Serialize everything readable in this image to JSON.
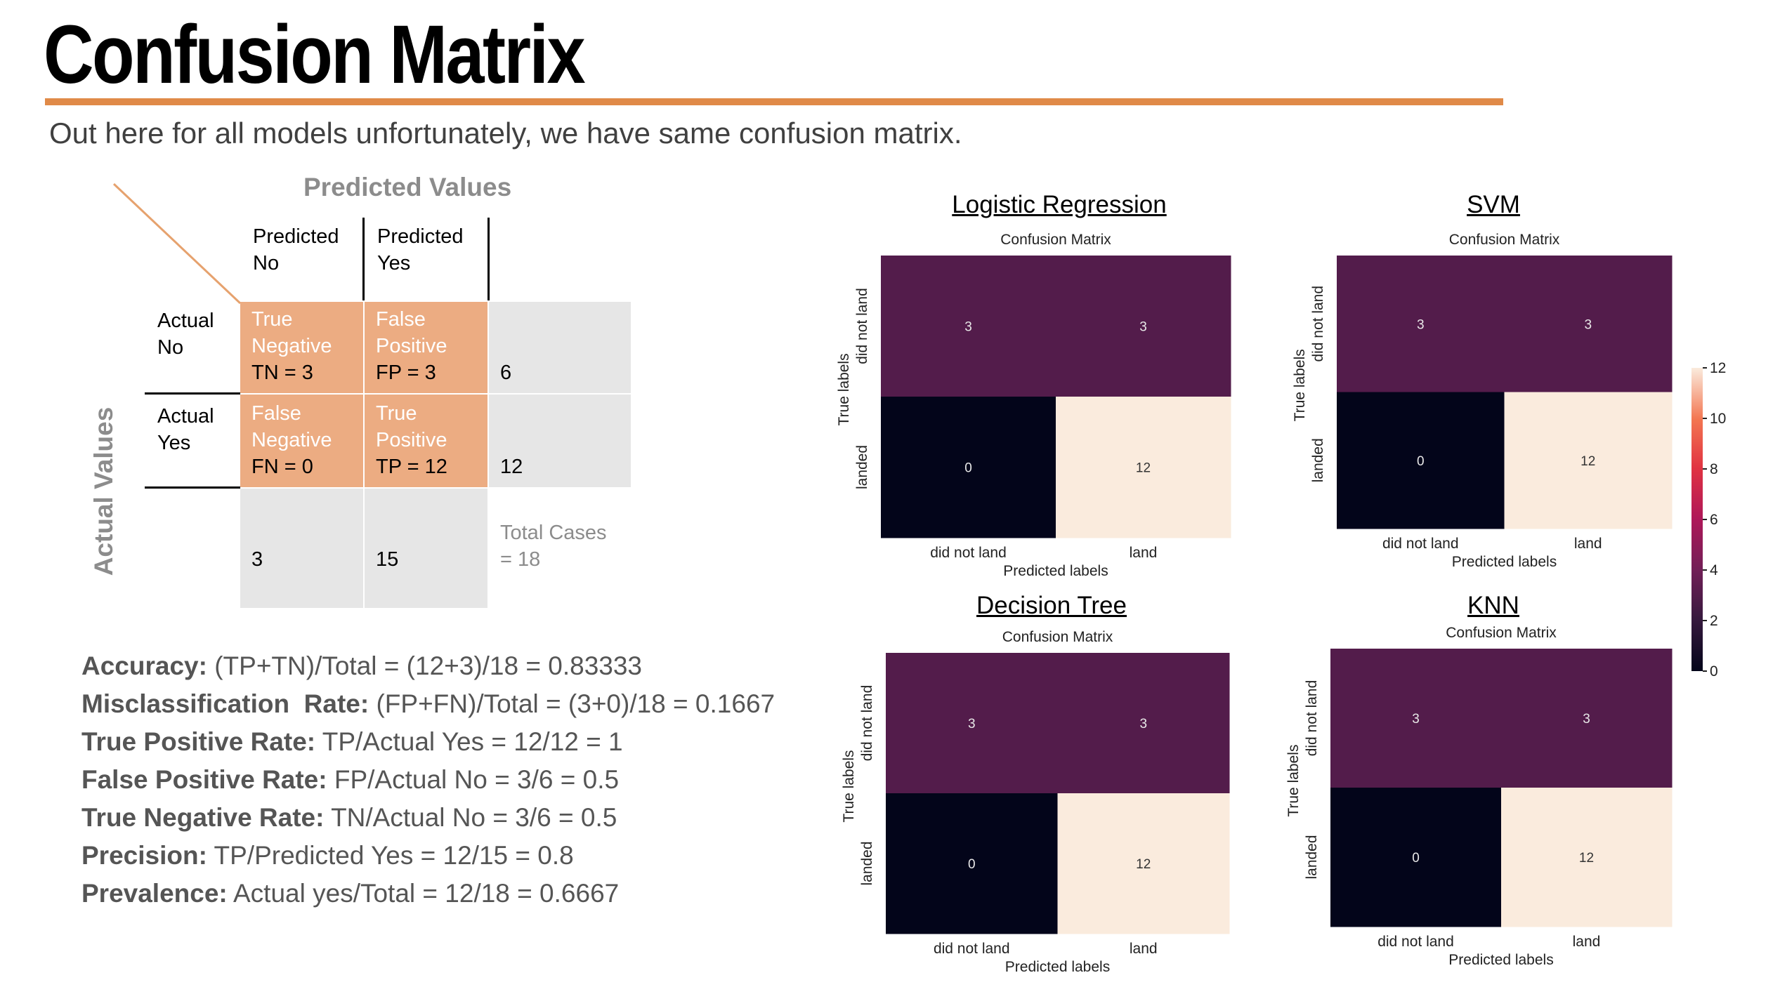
{
  "title": "Confusion Matrix",
  "subtitle": "Out here for all models unfortunately, we have same confusion matrix.",
  "explainer": {
    "predicted_header": "Predicted Values",
    "actual_header": "Actual Values",
    "col_predicted_no": [
      "Predicted",
      "No"
    ],
    "col_predicted_yes": [
      "Predicted",
      "Yes"
    ],
    "row_actual_no": [
      "Actual",
      "No"
    ],
    "row_actual_yes": [
      "Actual",
      "Yes"
    ],
    "tn": [
      "True",
      "Negative",
      "TN = 3"
    ],
    "fp": [
      "False",
      "Positive",
      "FP = 3"
    ],
    "fn": [
      "False",
      "Negative",
      "FN = 0"
    ],
    "tp": [
      "True",
      "Positive",
      "TP = 12"
    ],
    "row_total_no": "6",
    "row_total_yes": "12",
    "col_total_no": "3",
    "col_total_yes": "15",
    "total_cases": [
      "Total Cases",
      "= 18"
    ],
    "colors": {
      "cell": "#ecac82",
      "total": "#e6e6e6",
      "diagonal": "#e6a26e"
    }
  },
  "metrics": [
    {
      "label": "Accuracy:",
      "formula": "(TP+TN)/Total = (12+3)/18 = 0.83333"
    },
    {
      "label": "Misclassification  Rate:",
      "formula": "(FP+FN)/Total = (3+0)/18 = 0.1667"
    },
    {
      "label": "True Positive Rate:",
      "formula": "TP/Actual Yes = 12/12 = 1"
    },
    {
      "label": "False Positive Rate:",
      "formula": "FP/Actual No = 3/6 = 0.5"
    },
    {
      "label": "True Negative Rate:",
      "formula": "TN/Actual No = 3/6 = 0.5"
    },
    {
      "label": "Precision:",
      "formula": "TP/Predicted Yes = 12/15 = 0.8"
    },
    {
      "label": "Prevalence:",
      "formula": "Actual yes/Total = 12/18 = 0.6667"
    }
  ],
  "chart_data": [
    {
      "type": "heatmap",
      "model": "Logistic Regression",
      "title": "Confusion Matrix",
      "xlabel": "Predicted labels",
      "ylabel": "True labels",
      "x_ticks": [
        "did not land",
        "land"
      ],
      "y_ticks": [
        "did not land",
        "landed"
      ],
      "values": [
        [
          3,
          3
        ],
        [
          0,
          12
        ]
      ]
    },
    {
      "type": "heatmap",
      "model": "SVM",
      "title": "Confusion Matrix",
      "xlabel": "Predicted labels",
      "ylabel": "True labels",
      "x_ticks": [
        "did not land",
        "land"
      ],
      "y_ticks": [
        "did not land",
        "landed"
      ],
      "values": [
        [
          3,
          3
        ],
        [
          0,
          12
        ]
      ]
    },
    {
      "type": "heatmap",
      "model": "Decision Tree",
      "title": "Confusion Matrix",
      "xlabel": "Predicted labels",
      "ylabel": "True labels",
      "x_ticks": [
        "did not land",
        "land"
      ],
      "y_ticks": [
        "did not land",
        "landed"
      ],
      "values": [
        [
          3,
          3
        ],
        [
          0,
          12
        ]
      ]
    },
    {
      "type": "heatmap",
      "model": "KNN",
      "title": "Confusion Matrix",
      "xlabel": "Predicted labels",
      "ylabel": "True labels",
      "x_ticks": [
        "did not land",
        "land"
      ],
      "y_ticks": [
        "did not land",
        "landed"
      ],
      "values": [
        [
          3,
          3
        ],
        [
          0,
          12
        ]
      ]
    }
  ],
  "colorbar": {
    "min": 0,
    "max": 12,
    "ticks": [
      "0",
      "2",
      "4",
      "6",
      "8",
      "10",
      "12"
    ],
    "colormap": "rocket"
  }
}
